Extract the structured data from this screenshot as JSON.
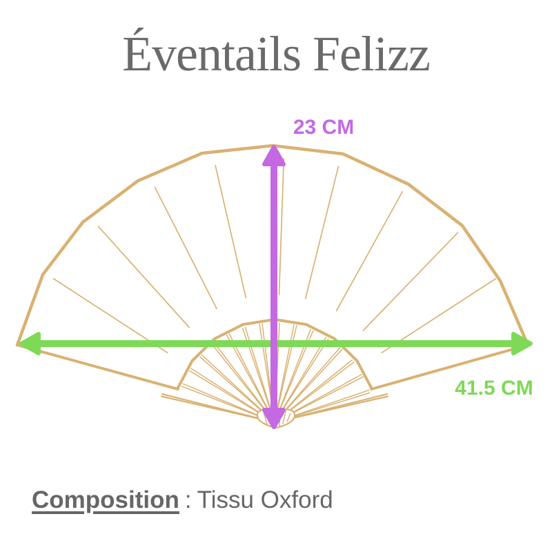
{
  "title": "Éventails Felizz",
  "dimensions": {
    "height_label": "23 CM",
    "width_label": "41.5 CM"
  },
  "composition": {
    "label": "Composition",
    "separator": ":",
    "value": "Tissu Oxford"
  },
  "colors": {
    "fan_outline": "#d9b172",
    "height_accent": "#c469e2",
    "width_accent": "#7ed957",
    "title_color": "#6a6a6a",
    "text_color": "#666666"
  }
}
